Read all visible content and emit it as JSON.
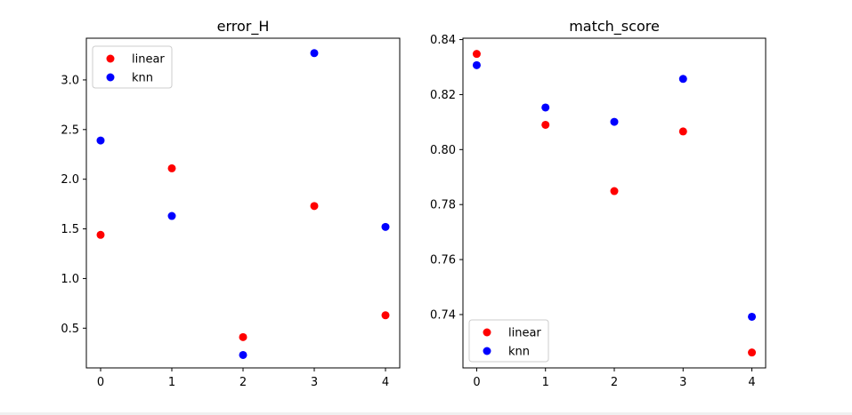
{
  "chart_data": [
    {
      "type": "scatter",
      "title": "error_H",
      "xlabel": "",
      "ylabel": "",
      "x": [
        0,
        1,
        2,
        3,
        4
      ],
      "xlim": [
        -0.2,
        4.2
      ],
      "ylim": [
        0.1,
        3.42
      ],
      "xticks": [
        "0",
        "1",
        "2",
        "3",
        "4"
      ],
      "yticks": [
        0.5,
        1.0,
        1.5,
        2.0,
        2.5,
        3.0
      ],
      "ytick_labels": [
        "0.5",
        "1.0",
        "1.5",
        "2.0",
        "2.5",
        "3.0"
      ],
      "grid": false,
      "legend_position": "upper left",
      "series": [
        {
          "name": "linear",
          "color": "#ff0000",
          "values": [
            1.44,
            2.11,
            0.41,
            1.73,
            0.63
          ]
        },
        {
          "name": "knn",
          "color": "#0000ff",
          "values": [
            2.39,
            1.63,
            0.23,
            3.27,
            1.52
          ]
        }
      ]
    },
    {
      "type": "scatter",
      "title": "match_score",
      "xlabel": "",
      "ylabel": "",
      "x": [
        0,
        1,
        2,
        3,
        4
      ],
      "xlim": [
        -0.2,
        4.2
      ],
      "ylim": [
        0.7206,
        0.8405
      ],
      "xticks": [
        "0",
        "1",
        "2",
        "3",
        "4"
      ],
      "yticks": [
        0.74,
        0.76,
        0.78,
        0.8,
        0.82,
        0.84
      ],
      "ytick_labels": [
        "0.74",
        "0.76",
        "0.78",
        "0.80",
        "0.82",
        "0.84"
      ],
      "grid": false,
      "legend_position": "lower left",
      "series": [
        {
          "name": "linear",
          "color": "#ff0000",
          "values": [
            0.8348,
            0.809,
            0.7849,
            0.8066,
            0.7262
          ]
        },
        {
          "name": "knn",
          "color": "#0000ff",
          "values": [
            0.8307,
            0.8153,
            0.8101,
            0.8257,
            0.7392
          ]
        }
      ]
    }
  ]
}
